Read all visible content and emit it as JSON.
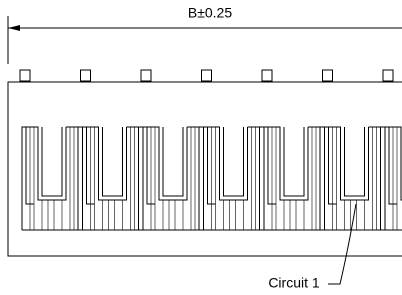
{
  "dimension": {
    "label": "B±0.25"
  },
  "callout": {
    "label": "Circuit 1"
  }
}
